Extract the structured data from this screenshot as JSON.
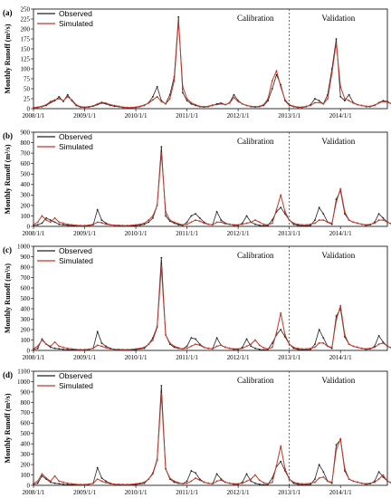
{
  "colors": {
    "observed": "#222222",
    "simulated": "#c0392b",
    "divider": "#333333"
  },
  "chart_data": [
    {
      "panel": "(a)",
      "type": "line",
      "ylabel": "Monthly Runoff (m³/s)",
      "ylim": [
        0,
        250
      ],
      "yticks": [
        0,
        25,
        50,
        75,
        100,
        125,
        150,
        175,
        200,
        225,
        250
      ],
      "x_range": [
        "2008/1/1",
        "2014/12/1"
      ],
      "xticks": [
        "2008/1/1",
        "2009/1/1",
        "2010/1/1",
        "2011/1/1",
        "2012/1/1",
        "2013/1/1",
        "2014/1/1"
      ],
      "legend": [
        "Observed",
        "Simulated"
      ],
      "legend_position": "top-left",
      "regions": [
        "Calibration",
        "Validation"
      ],
      "divider": "2013/1/1",
      "series": [
        {
          "name": "Observed",
          "values": [
            2,
            3,
            5,
            8,
            15,
            20,
            30,
            18,
            35,
            20,
            8,
            4,
            3,
            4,
            6,
            10,
            14,
            12,
            8,
            6,
            5,
            3,
            2,
            2,
            3,
            5,
            8,
            15,
            30,
            55,
            20,
            12,
            35,
            80,
            230,
            40,
            20,
            12,
            8,
            5,
            4,
            5,
            8,
            12,
            14,
            10,
            15,
            35,
            20,
            12,
            8,
            5,
            4,
            5,
            8,
            20,
            50,
            85,
            60,
            20,
            8,
            5,
            3,
            3,
            5,
            10,
            25,
            20,
            12,
            35,
            100,
            175,
            30,
            20,
            35,
            15,
            10,
            8,
            5,
            5,
            8,
            15,
            20,
            18,
            12,
            8,
            6,
            5
          ]
        },
        {
          "name": "Simulated",
          "values": [
            3,
            4,
            6,
            10,
            18,
            22,
            25,
            20,
            30,
            22,
            10,
            5,
            4,
            5,
            7,
            12,
            16,
            14,
            10,
            8,
            6,
            4,
            3,
            3,
            4,
            6,
            9,
            14,
            22,
            30,
            18,
            12,
            25,
            70,
            220,
            55,
            25,
            15,
            10,
            6,
            5,
            6,
            9,
            10,
            12,
            10,
            14,
            28,
            18,
            12,
            8,
            6,
            5,
            6,
            10,
            25,
            70,
            95,
            55,
            22,
            10,
            6,
            4,
            4,
            6,
            8,
            15,
            15,
            12,
            25,
            90,
            165,
            55,
            25,
            20,
            14,
            10,
            8,
            6,
            6,
            9,
            14,
            18,
            16,
            12,
            8,
            6,
            5
          ]
        }
      ]
    },
    {
      "panel": "(b)",
      "type": "line",
      "ylabel": "Monthly Runoff (m³/s)",
      "ylim": [
        0,
        900
      ],
      "yticks": [
        0,
        100,
        200,
        300,
        400,
        500,
        600,
        700,
        800,
        900
      ],
      "x_range": [
        "2008/1/1",
        "2014/12/1"
      ],
      "xticks": [
        "2008/1/1",
        "2009/1/1",
        "2010/1/1",
        "2011/1/1",
        "2012/1/1",
        "2013/1/1",
        "2014/1/1"
      ],
      "legend": [
        "Observed",
        "Simulated"
      ],
      "legend_position": "top-left",
      "regions": [
        "Calibration",
        "Validation"
      ],
      "divider": "2013/1/1",
      "series": [
        {
          "name": "Observed",
          "values": [
            10,
            15,
            30,
            80,
            60,
            40,
            20,
            15,
            10,
            8,
            5,
            5,
            5,
            8,
            15,
            160,
            60,
            30,
            15,
            10,
            8,
            5,
            5,
            5,
            8,
            12,
            20,
            40,
            80,
            200,
            760,
            100,
            50,
            30,
            15,
            10,
            40,
            100,
            120,
            80,
            40,
            20,
            15,
            140,
            60,
            30,
            20,
            10,
            10,
            30,
            100,
            40,
            20,
            10,
            5,
            10,
            60,
            140,
            180,
            120,
            60,
            20,
            10,
            5,
            5,
            10,
            60,
            180,
            120,
            40,
            20,
            260,
            340,
            120,
            60,
            40,
            30,
            20,
            10,
            15,
            40,
            120,
            80,
            40,
            20,
            15,
            10,
            5
          ]
        },
        {
          "name": "Simulated",
          "values": [
            20,
            40,
            100,
            60,
            40,
            80,
            40,
            30,
            20,
            15,
            10,
            8,
            8,
            12,
            20,
            40,
            35,
            20,
            15,
            10,
            10,
            8,
            8,
            10,
            15,
            20,
            30,
            60,
            100,
            200,
            700,
            140,
            60,
            40,
            25,
            15,
            20,
            40,
            60,
            50,
            30,
            20,
            15,
            40,
            40,
            25,
            20,
            15,
            15,
            20,
            30,
            40,
            60,
            40,
            20,
            15,
            30,
            160,
            300,
            140,
            60,
            30,
            20,
            15,
            15,
            20,
            30,
            60,
            60,
            40,
            30,
            230,
            360,
            140,
            60,
            40,
            30,
            20,
            15,
            20,
            30,
            60,
            60,
            40,
            25,
            15,
            10,
            8
          ]
        }
      ]
    },
    {
      "panel": "(c)",
      "type": "line",
      "ylabel": "Monthly Runoff (m³/s)",
      "ylim": [
        0,
        1000
      ],
      "yticks": [
        0,
        100,
        200,
        300,
        400,
        500,
        600,
        700,
        800,
        900,
        1000
      ],
      "x_range": [
        "2008/1/1",
        "2014/12/1"
      ],
      "xticks": [
        "2008/1/1",
        "2009/1/1",
        "2010/1/1",
        "2011/1/1",
        "2012/1/1",
        "2013/1/1",
        "2014/1/1"
      ],
      "legend": [
        "Observed",
        "Simulated"
      ],
      "legend_position": "top-left",
      "regions": [
        "Calibration",
        "Validation"
      ],
      "divider": "2013/1/1",
      "series": [
        {
          "name": "Observed",
          "values": [
            10,
            20,
            110,
            60,
            30,
            20,
            15,
            10,
            8,
            5,
            5,
            5,
            5,
            10,
            20,
            180,
            70,
            40,
            20,
            10,
            8,
            5,
            5,
            5,
            8,
            15,
            20,
            60,
            120,
            230,
            890,
            150,
            60,
            30,
            20,
            15,
            40,
            120,
            110,
            60,
            30,
            20,
            15,
            120,
            50,
            30,
            20,
            10,
            10,
            30,
            110,
            40,
            20,
            10,
            5,
            10,
            70,
            150,
            200,
            130,
            60,
            20,
            10,
            5,
            5,
            10,
            60,
            200,
            120,
            40,
            20,
            330,
            400,
            130,
            60,
            40,
            30,
            20,
            10,
            15,
            40,
            140,
            80,
            40,
            20,
            15,
            10,
            5
          ]
        },
        {
          "name": "Simulated",
          "values": [
            20,
            40,
            100,
            60,
            40,
            80,
            40,
            30,
            20,
            15,
            10,
            8,
            8,
            12,
            20,
            50,
            40,
            25,
            15,
            10,
            10,
            8,
            8,
            10,
            15,
            20,
            30,
            60,
            100,
            220,
            800,
            150,
            70,
            40,
            25,
            15,
            20,
            40,
            60,
            50,
            30,
            20,
            15,
            40,
            50,
            30,
            20,
            15,
            15,
            20,
            40,
            60,
            100,
            50,
            25,
            15,
            30,
            170,
            360,
            150,
            60,
            30,
            20,
            15,
            15,
            20,
            30,
            70,
            70,
            40,
            30,
            290,
            430,
            150,
            60,
            40,
            30,
            20,
            15,
            20,
            30,
            60,
            70,
            40,
            25,
            15,
            10,
            8
          ]
        }
      ]
    },
    {
      "panel": "(d)",
      "type": "line",
      "ylabel": "Monthly Runoff (m³/s)",
      "ylim": [
        0,
        1100
      ],
      "yticks": [
        0,
        100,
        200,
        300,
        400,
        500,
        600,
        700,
        800,
        900,
        1000,
        1100
      ],
      "x_range": [
        "2008/1/1",
        "2014/12/1"
      ],
      "xticks": [
        "2008/1/1",
        "2009/1/1",
        "2010/1/1",
        "2011/1/1",
        "2012/1/1",
        "2013/1/1",
        "2014/1/1"
      ],
      "legend": [
        "Observed",
        "Simulated"
      ],
      "legend_position": "top-left",
      "regions": [
        "Calibration",
        "Validation"
      ],
      "divider": "2013/1/1",
      "series": [
        {
          "name": "Observed",
          "values": [
            10,
            20,
            90,
            60,
            30,
            20,
            15,
            10,
            8,
            5,
            5,
            5,
            5,
            10,
            20,
            170,
            70,
            40,
            20,
            10,
            8,
            5,
            5,
            5,
            8,
            15,
            20,
            60,
            120,
            250,
            960,
            160,
            60,
            30,
            20,
            15,
            40,
            140,
            120,
            60,
            30,
            20,
            15,
            110,
            60,
            30,
            20,
            10,
            10,
            30,
            110,
            40,
            20,
            10,
            5,
            10,
            70,
            180,
            230,
            140,
            60,
            20,
            10,
            5,
            5,
            10,
            60,
            200,
            130,
            40,
            20,
            390,
            440,
            140,
            60,
            40,
            30,
            20,
            10,
            15,
            40,
            130,
            80,
            40,
            20,
            15,
            10,
            5
          ]
        },
        {
          "name": "Simulated",
          "values": [
            20,
            40,
            110,
            70,
            40,
            90,
            40,
            30,
            20,
            15,
            10,
            8,
            8,
            12,
            20,
            60,
            40,
            25,
            15,
            10,
            10,
            8,
            8,
            10,
            15,
            20,
            30,
            60,
            110,
            240,
            880,
            160,
            70,
            40,
            25,
            15,
            20,
            40,
            70,
            50,
            30,
            20,
            15,
            40,
            50,
            30,
            20,
            15,
            15,
            20,
            40,
            60,
            100,
            50,
            25,
            15,
            30,
            190,
            380,
            160,
            60,
            30,
            20,
            15,
            15,
            20,
            30,
            70,
            80,
            40,
            30,
            340,
            450,
            160,
            60,
            40,
            30,
            20,
            15,
            20,
            30,
            60,
            100,
            40,
            25,
            15,
            10,
            8
          ]
        }
      ]
    }
  ]
}
